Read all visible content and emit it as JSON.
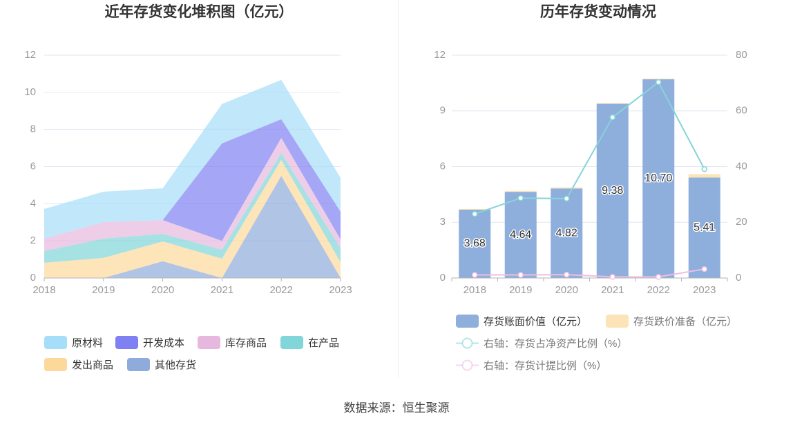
{
  "source": "数据来源：恒生聚源",
  "chart_data": [
    {
      "type": "area",
      "stacked": true,
      "title": "近年存货变化堆积图（亿元）",
      "categories": [
        "2018",
        "2019",
        "2020",
        "2021",
        "2022",
        "2023"
      ],
      "ylim": [
        0,
        12
      ],
      "yticks": [
        0,
        2,
        4,
        6,
        8,
        10,
        12
      ],
      "grid": true,
      "legend_position": "bottom",
      "series": [
        {
          "name": "原材料",
          "color": "#a6ddf8",
          "values": [
            1.6,
            1.64,
            1.71,
            2.12,
            2.12,
            1.82
          ]
        },
        {
          "name": "开发成本",
          "color": "#7f80f2",
          "values": [
            0,
            0,
            0,
            5.25,
            1.0,
            1.49
          ]
        },
        {
          "name": "库存商品",
          "color": "#e6b8dd",
          "values": [
            0.67,
            0.89,
            0.74,
            0.48,
            0.82,
            0.48
          ]
        },
        {
          "name": "在产品",
          "color": "#80d6d9",
          "values": [
            0.63,
            1.04,
            0.41,
            0.48,
            0.37,
            0.75
          ]
        },
        {
          "name": "发出商品",
          "color": "#fdd89b",
          "values": [
            0.82,
            1.08,
            1.07,
            1.04,
            0.86,
            0.85
          ]
        },
        {
          "name": "其他存货",
          "color": "#8eabdb",
          "values": [
            0,
            0,
            0.9,
            0,
            5.5,
            0
          ]
        }
      ]
    },
    {
      "type": "bar",
      "title": "历年存货变动情况",
      "categories": [
        "2018",
        "2019",
        "2020",
        "2021",
        "2022",
        "2023"
      ],
      "ylim": [
        0,
        12
      ],
      "yticks": [
        0,
        3,
        6,
        9,
        12
      ],
      "y2lim": [
        0,
        80
      ],
      "y2ticks": [
        0,
        20,
        40,
        60,
        80
      ],
      "grid": true,
      "legend_position": "bottom",
      "series": [
        {
          "name": "存货账面价值（亿元）",
          "type": "bar",
          "axis": "left",
          "color": "#8eaedc",
          "values": [
            3.68,
            4.64,
            4.82,
            9.38,
            10.7,
            5.41
          ],
          "data_labels": [
            "3.68",
            "4.64",
            "4.82",
            "9.38",
            "10.70",
            "5.41"
          ]
        },
        {
          "name": "存货跌价准备（亿元）",
          "type": "bar",
          "stacked": true,
          "axis": "left",
          "color": "#fde3b8",
          "values": [
            0.04,
            0.05,
            0.06,
            0.04,
            0.04,
            0.18
          ]
        },
        {
          "name": "右轴：存货占净资产比例（%）",
          "type": "line",
          "axis": "right",
          "color": "#86d4d8",
          "values": [
            23.0,
            28.7,
            28.5,
            57.7,
            70.3,
            39.1
          ]
        },
        {
          "name": "右轴：存货计提比例（%）",
          "type": "line",
          "axis": "right",
          "color": "#efbde3",
          "values": [
            1.1,
            1.1,
            1.2,
            0.4,
            0.4,
            3.2
          ]
        }
      ]
    }
  ]
}
